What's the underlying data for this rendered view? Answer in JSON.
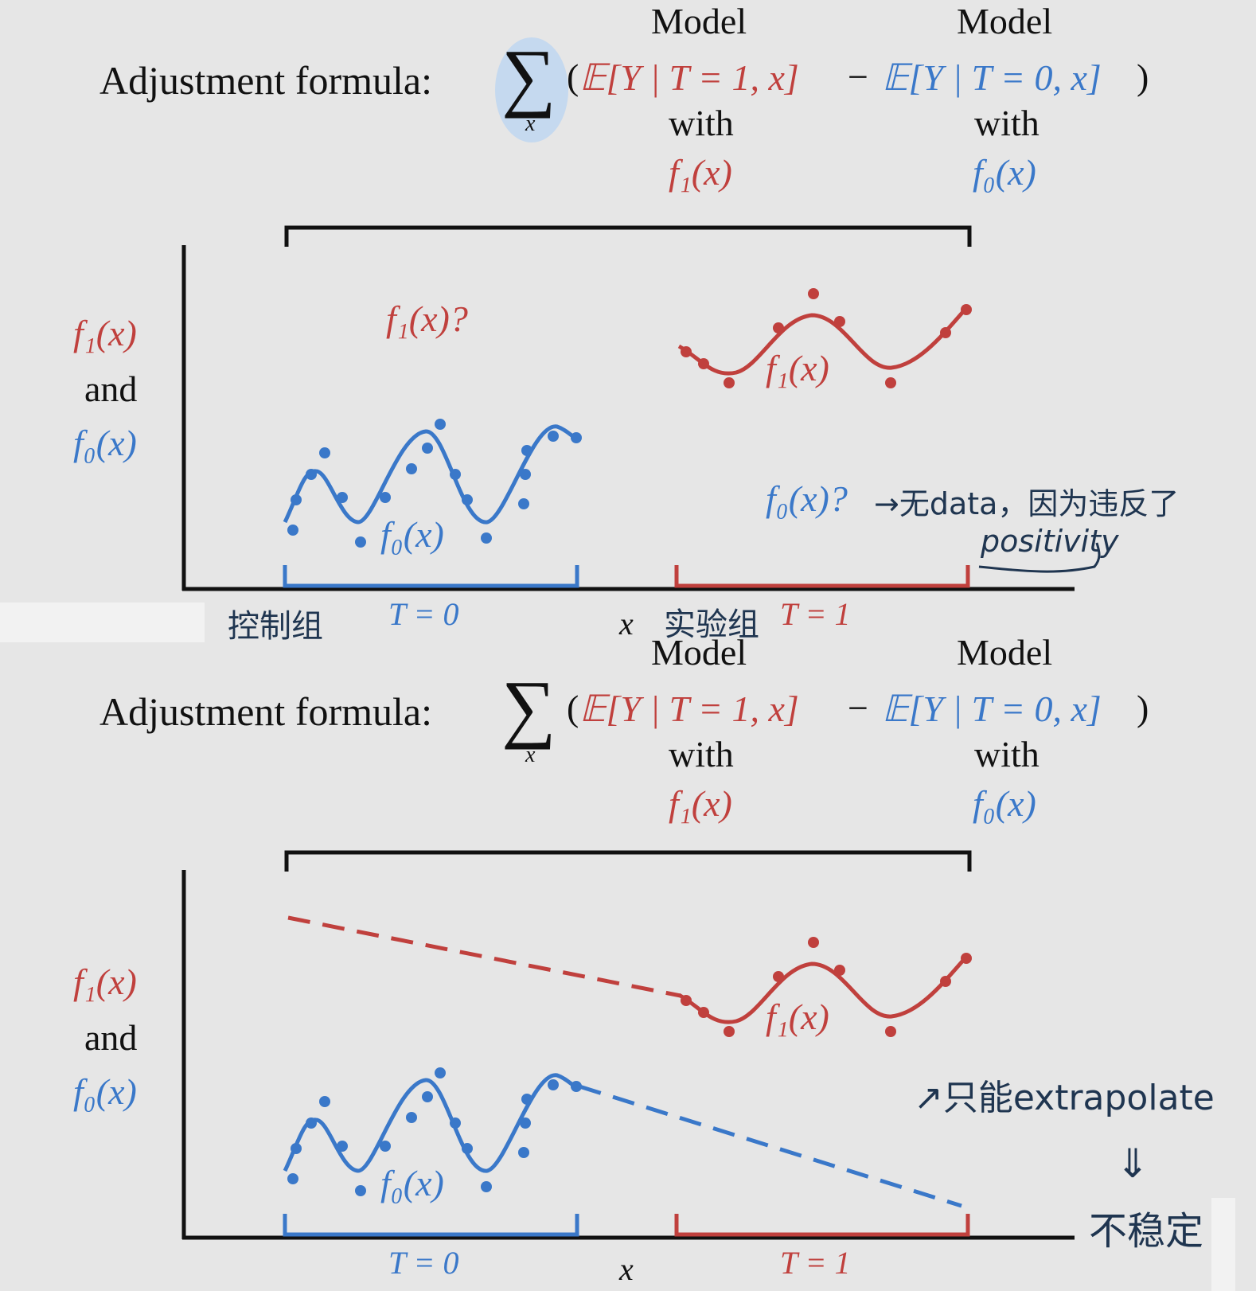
{
  "panels": [
    {
      "formula": {
        "label": "Adjustment formula:",
        "sum_sub": "x",
        "open_paren": "(",
        "treated_term": "𝔼[Y | T = 1, x]",
        "minus": "−",
        "control_term": "𝔼[Y | T = 0, x]",
        "close_paren": ")"
      },
      "annotations": {
        "treated_model": "Model",
        "treated_with": "with",
        "treated_fn": "f₁(x)",
        "control_model": "Model",
        "control_with": "with",
        "control_fn": "f₀(x)"
      },
      "y_axis": {
        "line1": "f₁(x)",
        "line2": "and",
        "line3": "f₀(x)"
      },
      "curve_labels": {
        "f1_question": "f₁(x)?",
        "f1": "f₁(x)",
        "f0": "f₀(x)",
        "f0_question": "f₀(x)?"
      },
      "x_axis": {
        "x": "x",
        "t0": "T = 0",
        "t1": "T = 1"
      },
      "handwritten": {
        "control_group": "控制组",
        "treatment_group": "实验组",
        "no_data_note": "→无data，因为违反了",
        "positivity": "positivity"
      }
    },
    {
      "formula": {
        "label": "Adjustment formula:",
        "sum_sub": "x",
        "open_paren": "(",
        "treated_term": "𝔼[Y | T = 1, x]",
        "minus": "−",
        "control_term": "𝔼[Y | T = 0, x]",
        "close_paren": ")"
      },
      "annotations": {
        "treated_model": "Model",
        "treated_with": "with",
        "treated_fn": "f₁(x)",
        "control_model": "Model",
        "control_with": "with",
        "control_fn": "f₀(x)"
      },
      "y_axis": {
        "line1": "f₁(x)",
        "line2": "and",
        "line3": "f₀(x)"
      },
      "curve_labels": {
        "f1": "f₁(x)",
        "f0": "f₀(x)"
      },
      "x_axis": {
        "x": "x",
        "t0": "T = 0",
        "t1": "T = 1"
      },
      "handwritten": {
        "extrapolate_note": "↗只能extrapolate",
        "arrow": "⇓",
        "unstable": "不稳定"
      }
    }
  ],
  "colors": {
    "treated": "#c0403d",
    "control": "#3a78c9",
    "axis": "#111111",
    "sum_highlight": "#c5d9ef",
    "handwriting": "#1f3550"
  }
}
